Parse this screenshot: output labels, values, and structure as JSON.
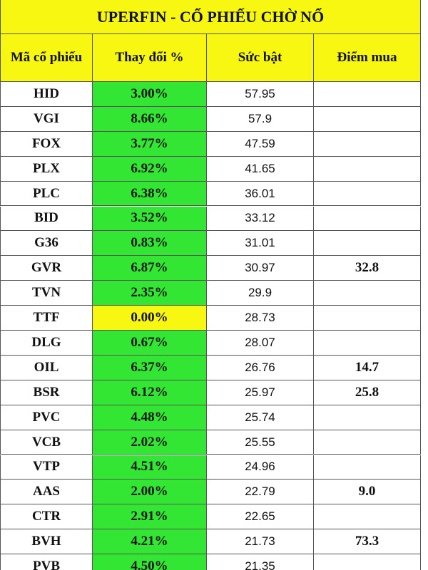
{
  "header": {
    "title": "UPERFIN - CỔ PHIẾU CHỜ NỔ"
  },
  "table": {
    "columns": [
      "Mã cổ phiếu",
      "Thay đổi %",
      "Sức bật",
      "Điểm mua"
    ],
    "rows": [
      {
        "code": "HID",
        "change": "3.00%",
        "strength": "57.95"
      },
      {
        "code": "VGI",
        "change": "8.66%",
        "strength": "57.9"
      },
      {
        "code": "FOX",
        "change": "3.77%",
        "strength": "47.59"
      },
      {
        "code": "PLX",
        "change": "6.92%",
        "strength": "41.65"
      },
      {
        "code": "PLC",
        "change": "6.38%",
        "strength": "36.01"
      },
      {
        "code": "BID",
        "change": "3.52%",
        "strength": "33.12"
      },
      {
        "code": "G36",
        "change": "0.83%",
        "strength": "31.01"
      },
      {
        "code": "GVR",
        "change": "6.87%",
        "strength": "30.97",
        "buy": "32.8"
      },
      {
        "code": "TVN",
        "change": "2.35%",
        "strength": "29.9"
      },
      {
        "code": "TTF",
        "change": "0.00%",
        "strength": "28.73"
      },
      {
        "code": "DLG",
        "change": "0.67%",
        "strength": "28.07"
      },
      {
        "code": "OIL",
        "change": "6.37%",
        "strength": "26.76",
        "buy": "14.7"
      },
      {
        "code": "BSR",
        "change": "6.12%",
        "strength": "25.97",
        "buy": "25.8"
      },
      {
        "code": "PVC",
        "change": "4.48%",
        "strength": "25.74"
      },
      {
        "code": "VCB",
        "change": "2.02%",
        "strength": "25.55"
      },
      {
        "code": "VTP",
        "change": "4.51%",
        "strength": "24.96"
      },
      {
        "code": "AAS",
        "change": "2.00%",
        "strength": "22.79",
        "buy": "9.0"
      },
      {
        "code": "CTR",
        "change": "2.91%",
        "strength": "22.65"
      },
      {
        "code": "BVH",
        "change": "4.21%",
        "strength": "21.73",
        "buy": "73.3"
      },
      {
        "code": "PVB",
        "change": "4.50%",
        "strength": "21.35"
      }
    ]
  }
}
